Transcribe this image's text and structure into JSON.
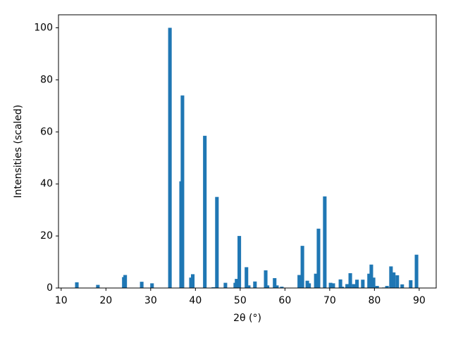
{
  "chart_data": {
    "type": "bar",
    "xlabel": "2θ (°)",
    "ylabel": "Intensities (scaled)",
    "color": "#1f77b4",
    "x": [
      13.5,
      18.2,
      24.0,
      24.3,
      28.0,
      30.3,
      34.3,
      36.8,
      37.1,
      39.0,
      39.4,
      42.1,
      44.0,
      44.8,
      46.7,
      48.9,
      49.2,
      49.8,
      51.4,
      51.9,
      53.3,
      55.7,
      56.1,
      57.7,
      58.2,
      59.3,
      63.2,
      63.9,
      65.0,
      65.4,
      66.9,
      67.5,
      68.9,
      70.2,
      70.8,
      72.4,
      72.8,
      73.9,
      74.6,
      75.4,
      76.1,
      77.4,
      78.8,
      79.3,
      79.8,
      80.6,
      82.1,
      82.8,
      83.7,
      84.3,
      85.1,
      86.2,
      88.1,
      89.4
    ],
    "values": [
      2.2,
      1.2,
      4.2,
      5.0,
      2.4,
      1.8,
      100,
      41,
      74,
      4.0,
      5.3,
      58.5,
      0.3,
      35,
      2.0,
      2.0,
      3.5,
      20,
      8,
      1.0,
      2.5,
      6.8,
      1.0,
      3.8,
      1.0,
      0.5,
      5.0,
      16.2,
      2.8,
      1.8,
      5.5,
      22.8,
      35.2,
      2.0,
      1.8,
      3.3,
      0.5,
      1.5,
      5.7,
      1.5,
      3.2,
      3.2,
      5.5,
      9.0,
      4.0,
      0.8,
      0.2,
      0.8,
      8.3,
      6.0,
      4.9,
      1.4,
      3.0,
      12.8
    ],
    "xlim": [
      9.4,
      93.8
    ],
    "ylim": [
      0,
      105
    ],
    "xticks": [
      10,
      20,
      30,
      40,
      50,
      60,
      70,
      80,
      90
    ],
    "yticks": [
      0,
      20,
      40,
      60,
      80,
      100
    ]
  }
}
